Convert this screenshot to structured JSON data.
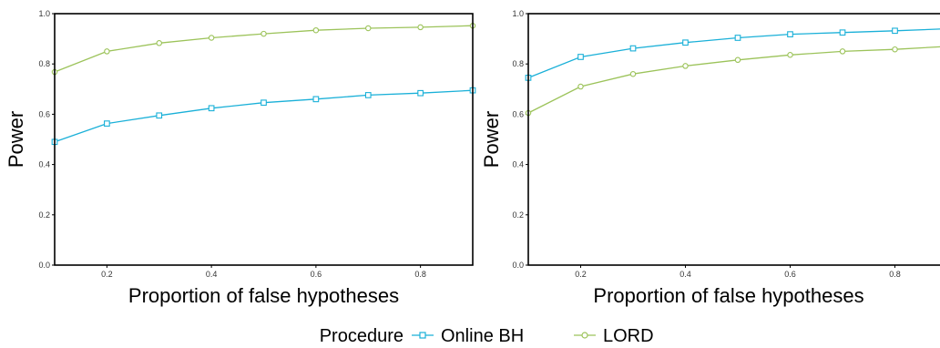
{
  "legend": {
    "title": "Procedure",
    "placement": "bottom"
  },
  "colors": {
    "online_bh": "#1ab0d8",
    "lord": "#9cc35a",
    "axis": "#000000",
    "tick_text": "#333333"
  },
  "chart_data": [
    {
      "type": "line",
      "title": "",
      "xlabel": "Proportion of false hypotheses",
      "ylabel": "Power",
      "xlim": [
        0.1,
        0.9
      ],
      "ylim": [
        0.0,
        1.0
      ],
      "xticks": [
        0.2,
        0.4,
        0.6,
        0.8
      ],
      "xtick_labels": [
        "0.2",
        "0.4",
        "0.6",
        "0.8"
      ],
      "yticks": [
        0.0,
        0.2,
        0.4,
        0.6,
        0.8,
        1.0
      ],
      "ytick_labels": [
        "0.0",
        "0.2",
        "0.4",
        "0.6",
        "0.8",
        "1.0"
      ],
      "grid": false,
      "x": [
        0.1,
        0.2,
        0.3,
        0.4,
        0.5,
        0.6,
        0.7,
        0.8,
        0.9
      ],
      "series": [
        {
          "name": "Online BH",
          "marker": "square",
          "values": [
            0.49,
            0.563,
            0.595,
            0.624,
            0.646,
            0.66,
            0.676,
            0.684,
            0.695
          ]
        },
        {
          "name": "LORD",
          "marker": "circle",
          "values": [
            0.768,
            0.85,
            0.883,
            0.904,
            0.92,
            0.934,
            0.942,
            0.946,
            0.952
          ]
        }
      ]
    },
    {
      "type": "line",
      "title": "",
      "xlabel": "Proportion of false hypotheses",
      "ylabel": "Power",
      "xlim": [
        0.1,
        0.9
      ],
      "ylim": [
        0.0,
        1.0
      ],
      "xticks": [
        0.2,
        0.4,
        0.6,
        0.8
      ],
      "xtick_labels": [
        "0.2",
        "0.4",
        "0.6",
        "0.8"
      ],
      "yticks": [
        0.0,
        0.2,
        0.4,
        0.6,
        0.8,
        1.0
      ],
      "ytick_labels": [
        "0.0",
        "0.2",
        "0.4",
        "0.6",
        "0.8",
        "1.0"
      ],
      "grid": false,
      "x": [
        0.1,
        0.2,
        0.3,
        0.4,
        0.5,
        0.6,
        0.7,
        0.8,
        0.9
      ],
      "series": [
        {
          "name": "Online BH",
          "marker": "square",
          "values": [
            0.745,
            0.828,
            0.862,
            0.885,
            0.904,
            0.918,
            0.925,
            0.932,
            0.94
          ]
        },
        {
          "name": "LORD",
          "marker": "circle",
          "values": [
            0.605,
            0.71,
            0.76,
            0.792,
            0.816,
            0.836,
            0.85,
            0.858,
            0.87
          ]
        }
      ]
    }
  ]
}
